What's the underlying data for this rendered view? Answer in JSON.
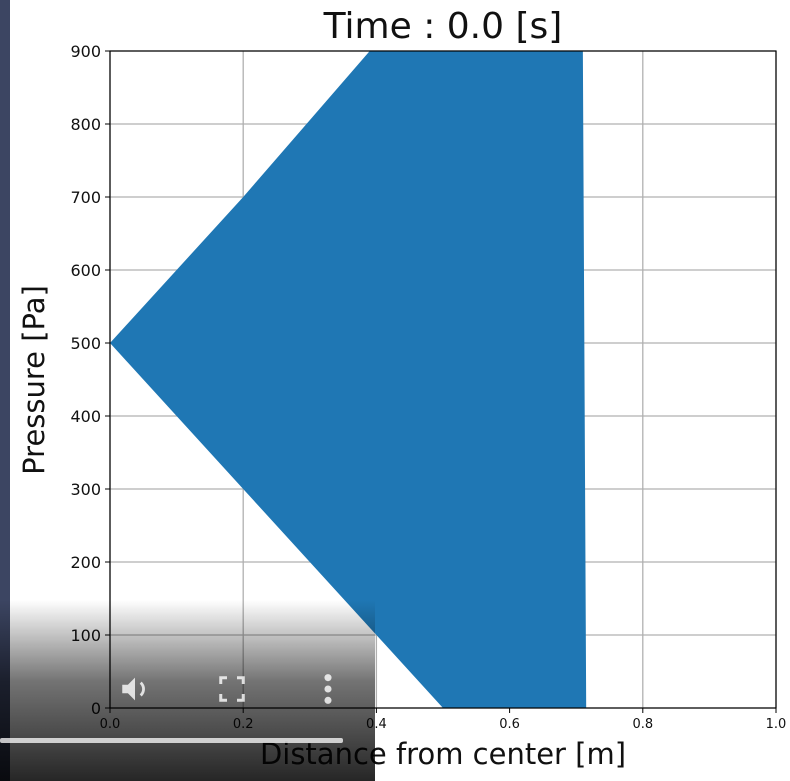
{
  "chart_data": {
    "type": "area",
    "title": "Time : 0.0 [s]",
    "xlabel": "Distance from center [m]",
    "ylabel": "Pressure [Pa]",
    "xlim": [
      0.0,
      1.0
    ],
    "ylim": [
      0,
      900
    ],
    "xticks": [
      "0.0",
      "0.2",
      "0.4",
      "0.6",
      "0.8",
      "1.0"
    ],
    "yticks": [
      "0",
      "100",
      "200",
      "300",
      "400",
      "500",
      "600",
      "700",
      "800",
      "900"
    ],
    "grid": true,
    "fill_color": "#1f77b4",
    "series": [
      {
        "left_boundary": [
          [
            0.0,
            500
          ],
          [
            0.2,
            700
          ],
          [
            0.39,
            900
          ]
        ],
        "left_boundary_lower": [
          [
            0.0,
            500
          ],
          [
            0.2,
            300
          ],
          [
            0.5,
            0
          ]
        ],
        "right_boundary": [
          [
            0.71,
            900
          ],
          [
            0.715,
            0
          ]
        ]
      }
    ]
  },
  "video_controls": {
    "volume_icon": "speaker-icon",
    "fullscreen_icon": "fullscreen-icon",
    "more_icon": "more-vert-icon",
    "progress": 0.92
  }
}
